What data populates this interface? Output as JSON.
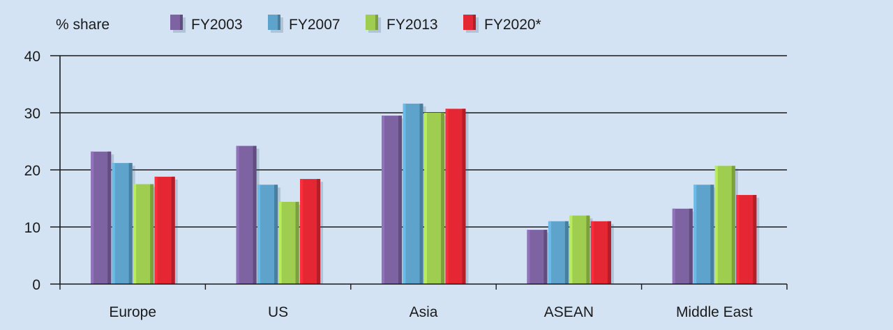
{
  "chart_data": {
    "type": "bar",
    "ylabel": "% share",
    "ylim": [
      0,
      40
    ],
    "yticks": [
      0,
      10,
      20,
      30,
      40
    ],
    "grid": true,
    "legend_position": "top",
    "categories": [
      "Europe",
      "US",
      "Asia",
      "ASEAN",
      "Middle East"
    ],
    "series": [
      {
        "name": "FY2003",
        "color": "#7e63a3",
        "values": [
          23.2,
          24.2,
          29.5,
          9.5,
          13.2
        ]
      },
      {
        "name": "FY2007",
        "color": "#5da3cb",
        "values": [
          21.2,
          17.4,
          31.6,
          11.0,
          17.4
        ]
      },
      {
        "name": "FY2013",
        "color": "#9fcd4f",
        "values": [
          17.5,
          14.4,
          30.0,
          12.0,
          20.7
        ]
      },
      {
        "name": "FY2020*",
        "color": "#e52733",
        "values": [
          18.8,
          18.4,
          30.7,
          11.0,
          15.6
        ]
      }
    ]
  }
}
